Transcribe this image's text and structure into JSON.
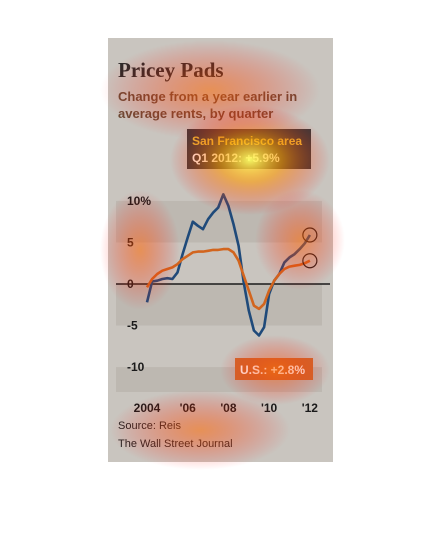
{
  "title": "Pricey Pads",
  "subtitle": "Change from a year earlier in average rents, by quarter",
  "source": "Source: Reis",
  "publisher": "The Wall Street Journal",
  "colors": {
    "san_francisco": "#1f4a7a",
    "us": "#d2651e",
    "callout_sf_bg": "#3a3a3a",
    "callout_us_bg": "#cf6a2e",
    "band": "#bdb8b1"
  },
  "chart_data": {
    "type": "line",
    "ylim": [
      -13,
      13
    ],
    "xlim": [
      2004,
      2012.4
    ],
    "y_ticks": [
      {
        "value": 10,
        "label": "10%"
      },
      {
        "value": 5,
        "label": "5"
      },
      {
        "value": 0,
        "label": "0"
      },
      {
        "value": -5,
        "label": "-5"
      },
      {
        "value": -10,
        "label": "-10"
      }
    ],
    "x_ticks": [
      {
        "value": 2004,
        "label": "2004"
      },
      {
        "value": 2006,
        "label": "'06"
      },
      {
        "value": 2008,
        "label": "'08"
      },
      {
        "value": 2010,
        "label": "'10"
      },
      {
        "value": 2012,
        "label": "'12"
      }
    ],
    "series": [
      {
        "name": "San Francisco area",
        "color_key": "san_francisco",
        "points": [
          [
            2004.0,
            -2.2
          ],
          [
            2004.25,
            0.3
          ],
          [
            2004.5,
            0.4
          ],
          [
            2004.75,
            0.6
          ],
          [
            2005.0,
            0.7
          ],
          [
            2005.25,
            0.6
          ],
          [
            2005.5,
            1.4
          ],
          [
            2005.75,
            3.6
          ],
          [
            2006.0,
            5.6
          ],
          [
            2006.25,
            7.5
          ],
          [
            2006.5,
            7.0
          ],
          [
            2006.75,
            6.6
          ],
          [
            2007.0,
            7.8
          ],
          [
            2007.25,
            8.6
          ],
          [
            2007.5,
            9.2
          ],
          [
            2007.75,
            10.8
          ],
          [
            2008.0,
            9.4
          ],
          [
            2008.25,
            7.2
          ],
          [
            2008.5,
            4.6
          ],
          [
            2008.75,
            0.2
          ],
          [
            2009.0,
            -3.2
          ],
          [
            2009.25,
            -5.6
          ],
          [
            2009.5,
            -6.2
          ],
          [
            2009.75,
            -5.2
          ],
          [
            2010.0,
            -1.2
          ],
          [
            2010.25,
            0.4
          ],
          [
            2010.5,
            1.2
          ],
          [
            2010.75,
            2.6
          ],
          [
            2011.0,
            3.2
          ],
          [
            2011.25,
            3.6
          ],
          [
            2011.5,
            4.2
          ],
          [
            2011.75,
            4.9
          ],
          [
            2012.0,
            5.9
          ]
        ],
        "callout": {
          "line1": "San Francisco area",
          "line2": "Q1 2012: +5.9%"
        }
      },
      {
        "name": "U.S.",
        "color_key": "us",
        "points": [
          [
            2004.0,
            -0.4
          ],
          [
            2004.25,
            0.6
          ],
          [
            2004.5,
            1.2
          ],
          [
            2004.75,
            1.6
          ],
          [
            2005.0,
            1.8
          ],
          [
            2005.25,
            2.0
          ],
          [
            2005.5,
            2.4
          ],
          [
            2005.75,
            3.0
          ],
          [
            2006.0,
            3.4
          ],
          [
            2006.25,
            3.8
          ],
          [
            2006.5,
            3.9
          ],
          [
            2006.75,
            3.9
          ],
          [
            2007.0,
            4.0
          ],
          [
            2007.25,
            4.1
          ],
          [
            2007.5,
            4.1
          ],
          [
            2007.75,
            4.2
          ],
          [
            2008.0,
            4.2
          ],
          [
            2008.25,
            3.8
          ],
          [
            2008.5,
            2.8
          ],
          [
            2008.75,
            1.0
          ],
          [
            2009.0,
            -0.8
          ],
          [
            2009.25,
            -2.6
          ],
          [
            2009.5,
            -3.0
          ],
          [
            2009.75,
            -2.4
          ],
          [
            2010.0,
            -0.8
          ],
          [
            2010.25,
            0.4
          ],
          [
            2010.5,
            1.2
          ],
          [
            2010.75,
            1.8
          ],
          [
            2011.0,
            2.1
          ],
          [
            2011.25,
            2.2
          ],
          [
            2011.5,
            2.3
          ],
          [
            2011.75,
            2.5
          ],
          [
            2012.0,
            2.8
          ]
        ],
        "callout": {
          "line1": "U.S.: +2.8%"
        }
      }
    ],
    "grid": false,
    "legend": "none"
  }
}
